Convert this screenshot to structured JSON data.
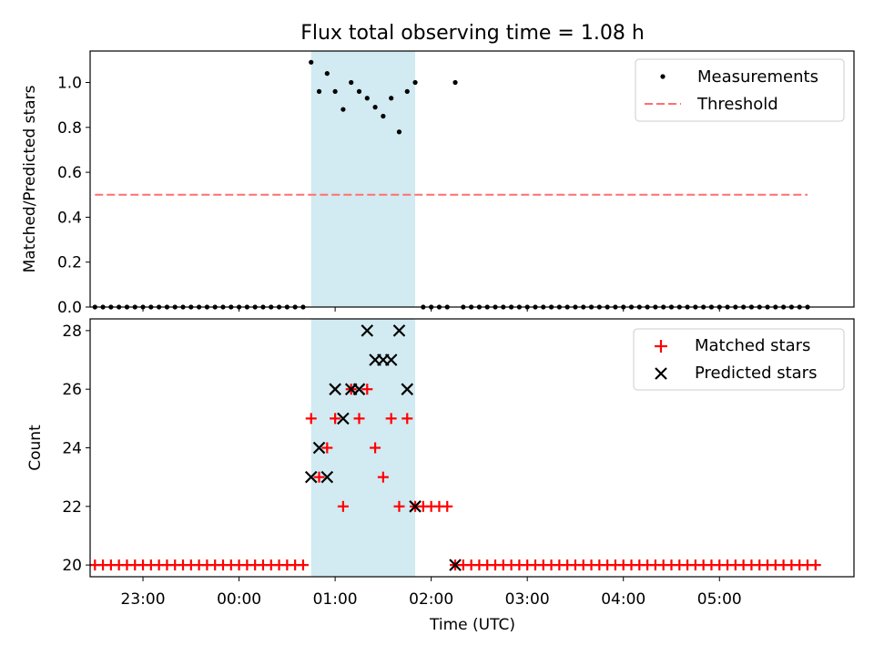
{
  "chart_data": [
    {
      "type": "scatter",
      "title": "Flux total observing time = 1.08 h",
      "xlabel": "",
      "ylabel": "Matched/Predicted stars",
      "xlim": [
        "22:27",
        "06:24"
      ],
      "ylim": [
        0,
        1.14
      ],
      "yticks": [
        "0.0",
        "0.2",
        "0.4",
        "0.6",
        "0.8",
        "1.0"
      ],
      "ytick_values": [
        0,
        0.2,
        0.4,
        0.6,
        0.8,
        1.0
      ],
      "shaded_span": [
        "00:45",
        "01:50"
      ],
      "shaded_color": "#add8e6",
      "legend_position": "top-right",
      "legend": [
        "Measurements",
        "Threshold"
      ],
      "threshold": {
        "name": "Threshold",
        "y": 0.5,
        "x_range": [
          "22:30",
          "05:55"
        ],
        "color": "#ff6f6f",
        "style": "dashed"
      },
      "series": [
        {
          "name": "Measurements",
          "color": "#000000",
          "marker": "dot",
          "x": [
            "22:30",
            "22:35",
            "22:40",
            "22:45",
            "22:50",
            "22:55",
            "23:00",
            "23:05",
            "23:10",
            "23:15",
            "23:20",
            "23:25",
            "23:30",
            "23:35",
            "23:40",
            "23:45",
            "23:50",
            "23:55",
            "00:00",
            "00:05",
            "00:10",
            "00:15",
            "00:20",
            "00:25",
            "00:30",
            "00:35",
            "00:40",
            "00:45",
            "00:50",
            "00:55",
            "01:00",
            "01:05",
            "01:10",
            "01:15",
            "01:20",
            "01:25",
            "01:30",
            "01:35",
            "01:40",
            "01:45",
            "01:50",
            "01:55",
            "02:00",
            "02:05",
            "02:10",
            "02:15",
            "02:20",
            "02:25",
            "02:30",
            "02:35",
            "02:40",
            "02:45",
            "02:50",
            "02:55",
            "03:00",
            "03:05",
            "03:10",
            "03:15",
            "03:20",
            "03:25",
            "03:30",
            "03:35",
            "03:40",
            "03:45",
            "03:50",
            "03:55",
            "04:00",
            "04:05",
            "04:10",
            "04:15",
            "04:20",
            "04:25",
            "04:30",
            "04:35",
            "04:40",
            "04:45",
            "04:50",
            "04:55",
            "05:00",
            "05:05",
            "05:10",
            "05:15",
            "05:20",
            "05:25",
            "05:30",
            "05:35",
            "05:40",
            "05:45",
            "05:50",
            "05:55"
          ],
          "y": [
            0,
            0,
            0,
            0,
            0,
            0,
            0,
            0,
            0,
            0,
            0,
            0,
            0,
            0,
            0,
            0,
            0,
            0,
            0,
            0,
            0,
            0,
            0,
            0,
            0,
            0,
            0,
            1.09,
            0.96,
            1.04,
            0.96,
            0.88,
            1.0,
            0.96,
            0.93,
            0.89,
            0.85,
            0.93,
            0.78,
            0.96,
            1.0,
            0,
            0,
            0,
            0,
            1.0,
            0,
            0,
            0,
            0,
            0,
            0,
            0,
            0,
            0,
            0,
            0,
            0,
            0,
            0,
            0,
            0,
            0,
            0,
            0,
            0,
            0,
            0,
            0,
            0,
            0,
            0,
            0,
            0,
            0,
            0,
            0,
            0,
            0,
            0,
            0,
            0,
            0,
            0,
            0,
            0,
            0,
            0,
            0,
            0
          ]
        }
      ]
    },
    {
      "type": "scatter",
      "title": "",
      "xlabel": "Time (UTC)",
      "ylabel": "Count",
      "xlim": [
        "22:27",
        "06:24"
      ],
      "ylim": [
        19.6,
        28.4
      ],
      "xticks": [
        "23:00",
        "00:00",
        "01:00",
        "02:00",
        "03:00",
        "04:00",
        "05:00"
      ],
      "yticks": [
        "20",
        "22",
        "24",
        "26",
        "28"
      ],
      "ytick_values": [
        20,
        22,
        24,
        26,
        28
      ],
      "shaded_span": [
        "00:45",
        "01:50"
      ],
      "shaded_color": "#add8e6",
      "legend_position": "top-right",
      "legend": [
        "Matched stars",
        "Predicted stars"
      ],
      "series": [
        {
          "name": "Matched stars",
          "color": "#ff0000",
          "marker": "plus",
          "x": [
            "22:30",
            "22:35",
            "22:40",
            "22:45",
            "22:50",
            "22:55",
            "23:00",
            "23:05",
            "23:10",
            "23:15",
            "23:20",
            "23:25",
            "23:30",
            "23:35",
            "23:40",
            "23:45",
            "23:50",
            "23:55",
            "00:00",
            "00:05",
            "00:10",
            "00:15",
            "00:20",
            "00:25",
            "00:30",
            "00:35",
            "00:40",
            "00:45",
            "00:50",
            "00:55",
            "01:00",
            "01:05",
            "01:10",
            "01:15",
            "01:20",
            "01:25",
            "01:30",
            "01:35",
            "01:40",
            "01:45",
            "01:50",
            "01:55",
            "02:00",
            "02:05",
            "02:10",
            "02:15",
            "02:20",
            "02:25",
            "02:30",
            "02:35",
            "02:40",
            "02:45",
            "02:50",
            "02:55",
            "03:00",
            "03:05",
            "03:10",
            "03:15",
            "03:20",
            "03:25",
            "03:30",
            "03:35",
            "03:40",
            "03:45",
            "03:50",
            "03:55",
            "04:00",
            "04:05",
            "04:10",
            "04:15",
            "04:20",
            "04:25",
            "04:30",
            "04:35",
            "04:40",
            "04:45",
            "04:50",
            "04:55",
            "05:00",
            "05:05",
            "05:10",
            "05:15",
            "05:20",
            "05:25",
            "05:30",
            "05:35",
            "05:40",
            "05:45",
            "05:50",
            "05:55",
            "06:00"
          ],
          "y": [
            20,
            20,
            20,
            20,
            20,
            20,
            20,
            20,
            20,
            20,
            20,
            20,
            20,
            20,
            20,
            20,
            20,
            20,
            20,
            20,
            20,
            20,
            20,
            20,
            20,
            20,
            20,
            25,
            23,
            24,
            25,
            22,
            26,
            25,
            26,
            24,
            23,
            25,
            22,
            25,
            22,
            22,
            22,
            22,
            22,
            20,
            20,
            20,
            20,
            20,
            20,
            20,
            20,
            20,
            20,
            20,
            20,
            20,
            20,
            20,
            20,
            20,
            20,
            20,
            20,
            20,
            20,
            20,
            20,
            20,
            20,
            20,
            20,
            20,
            20,
            20,
            20,
            20,
            20,
            20,
            20,
            20,
            20,
            20,
            20,
            20,
            20,
            20,
            20,
            20,
            20
          ]
        },
        {
          "name": "Predicted stars",
          "color": "#000000",
          "marker": "x",
          "x": [
            "00:45",
            "00:50",
            "00:55",
            "01:00",
            "01:05",
            "01:10",
            "01:15",
            "01:20",
            "01:25",
            "01:30",
            "01:35",
            "01:40",
            "01:45",
            "01:50",
            "02:15"
          ],
          "y": [
            23,
            24,
            23,
            26,
            25,
            26,
            26,
            28,
            27,
            27,
            27,
            28,
            26,
            22,
            20
          ]
        }
      ]
    }
  ]
}
